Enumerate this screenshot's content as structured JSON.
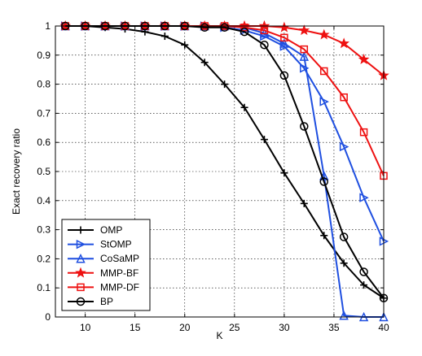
{
  "chart_data": {
    "type": "line",
    "title": "",
    "xlabel": "K",
    "ylabel": "Exact recovery ratio",
    "xlim": [
      7,
      40
    ],
    "ylim": [
      0,
      1
    ],
    "xticks": [
      10,
      15,
      20,
      25,
      30,
      35,
      40
    ],
    "yticks": [
      0,
      0.1,
      0.2,
      0.3,
      0.4,
      0.5,
      0.6,
      0.7,
      0.8,
      0.9,
      1
    ],
    "xtick_labels": [
      "10",
      "15",
      "20",
      "25",
      "30",
      "35",
      "40"
    ],
    "ytick_labels": [
      "0",
      "0.1",
      "0.2",
      "0.3",
      "0.4",
      "0.5",
      "0.6",
      "0.7",
      "0.8",
      "0.9",
      "1"
    ],
    "grid": true,
    "legend_position": "bottom-left",
    "series": [
      {
        "name": "OMP",
        "color": "#000000",
        "marker": "plus",
        "x": [
          8,
          10,
          12,
          14,
          16,
          18,
          20,
          22,
          24,
          26,
          28,
          30,
          32,
          34,
          36,
          38,
          40
        ],
        "y": [
          1.0,
          1.0,
          0.995,
          0.99,
          0.98,
          0.965,
          0.935,
          0.875,
          0.8,
          0.72,
          0.61,
          0.495,
          0.39,
          0.28,
          0.185,
          0.11,
          0.065
        ]
      },
      {
        "name": "StOMP",
        "color": "#1f4fe0",
        "marker": "triangle-right",
        "x": [
          8,
          10,
          12,
          14,
          16,
          18,
          20,
          22,
          24,
          26,
          28,
          30,
          32,
          34,
          36,
          38,
          40
        ],
        "y": [
          1.0,
          1.0,
          1.0,
          1.0,
          1.0,
          1.0,
          1.0,
          1.0,
          0.995,
          0.985,
          0.965,
          0.93,
          0.855,
          0.74,
          0.585,
          0.41,
          0.26
        ]
      },
      {
        "name": "CoSaMP",
        "color": "#1f4fe0",
        "marker": "triangle-up",
        "x": [
          8,
          10,
          12,
          14,
          16,
          18,
          20,
          22,
          24,
          26,
          28,
          30,
          32,
          34,
          36,
          38,
          40
        ],
        "y": [
          1.0,
          1.0,
          1.0,
          1.0,
          1.0,
          1.0,
          1.0,
          1.0,
          1.0,
          0.995,
          0.975,
          0.94,
          0.895,
          0.485,
          0.005,
          0.0,
          0.0
        ]
      },
      {
        "name": "MMP-BF",
        "color": "#ee1111",
        "marker": "star",
        "x": [
          8,
          10,
          12,
          14,
          16,
          18,
          20,
          22,
          24,
          26,
          28,
          30,
          32,
          34,
          36,
          38,
          40
        ],
        "y": [
          1.0,
          1.0,
          1.0,
          1.0,
          1.0,
          1.0,
          1.0,
          1.0,
          1.0,
          1.0,
          1.0,
          0.995,
          0.985,
          0.97,
          0.94,
          0.885,
          0.83
        ]
      },
      {
        "name": "MMP-DF",
        "color": "#ee1111",
        "marker": "square",
        "x": [
          8,
          10,
          12,
          14,
          16,
          18,
          20,
          22,
          24,
          26,
          28,
          30,
          32,
          34,
          36,
          38,
          40
        ],
        "y": [
          1.0,
          1.0,
          1.0,
          1.0,
          1.0,
          1.0,
          1.0,
          1.0,
          1.0,
          0.995,
          0.985,
          0.96,
          0.92,
          0.845,
          0.755,
          0.635,
          0.485
        ]
      },
      {
        "name": "BP",
        "color": "#000000",
        "marker": "circle",
        "x": [
          8,
          10,
          12,
          14,
          16,
          18,
          20,
          22,
          24,
          26,
          28,
          30,
          32,
          34,
          36,
          38,
          40
        ],
        "y": [
          1.0,
          1.0,
          1.0,
          1.0,
          1.0,
          1.0,
          1.0,
          0.995,
          0.995,
          0.98,
          0.935,
          0.83,
          0.655,
          0.465,
          0.275,
          0.155,
          0.065
        ]
      }
    ]
  }
}
